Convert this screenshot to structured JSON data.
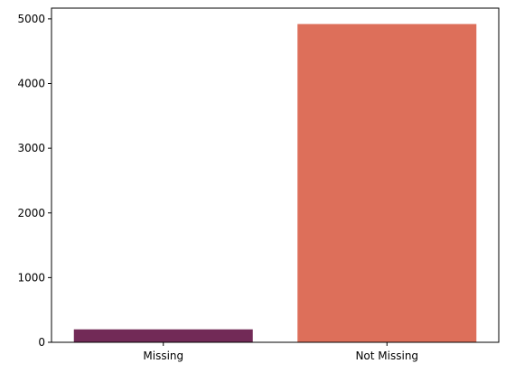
{
  "chart_data": {
    "type": "bar",
    "categories": [
      "Missing",
      "Not Missing"
    ],
    "values": [
      200,
      4920
    ],
    "colors": [
      "#722a57",
      "#dd6f5a"
    ],
    "title": "",
    "xlabel": "",
    "ylabel": "",
    "ylim": [
      0,
      5166
    ],
    "yticks": [
      0,
      1000,
      2000,
      3000,
      4000,
      5000
    ],
    "grid": false
  }
}
